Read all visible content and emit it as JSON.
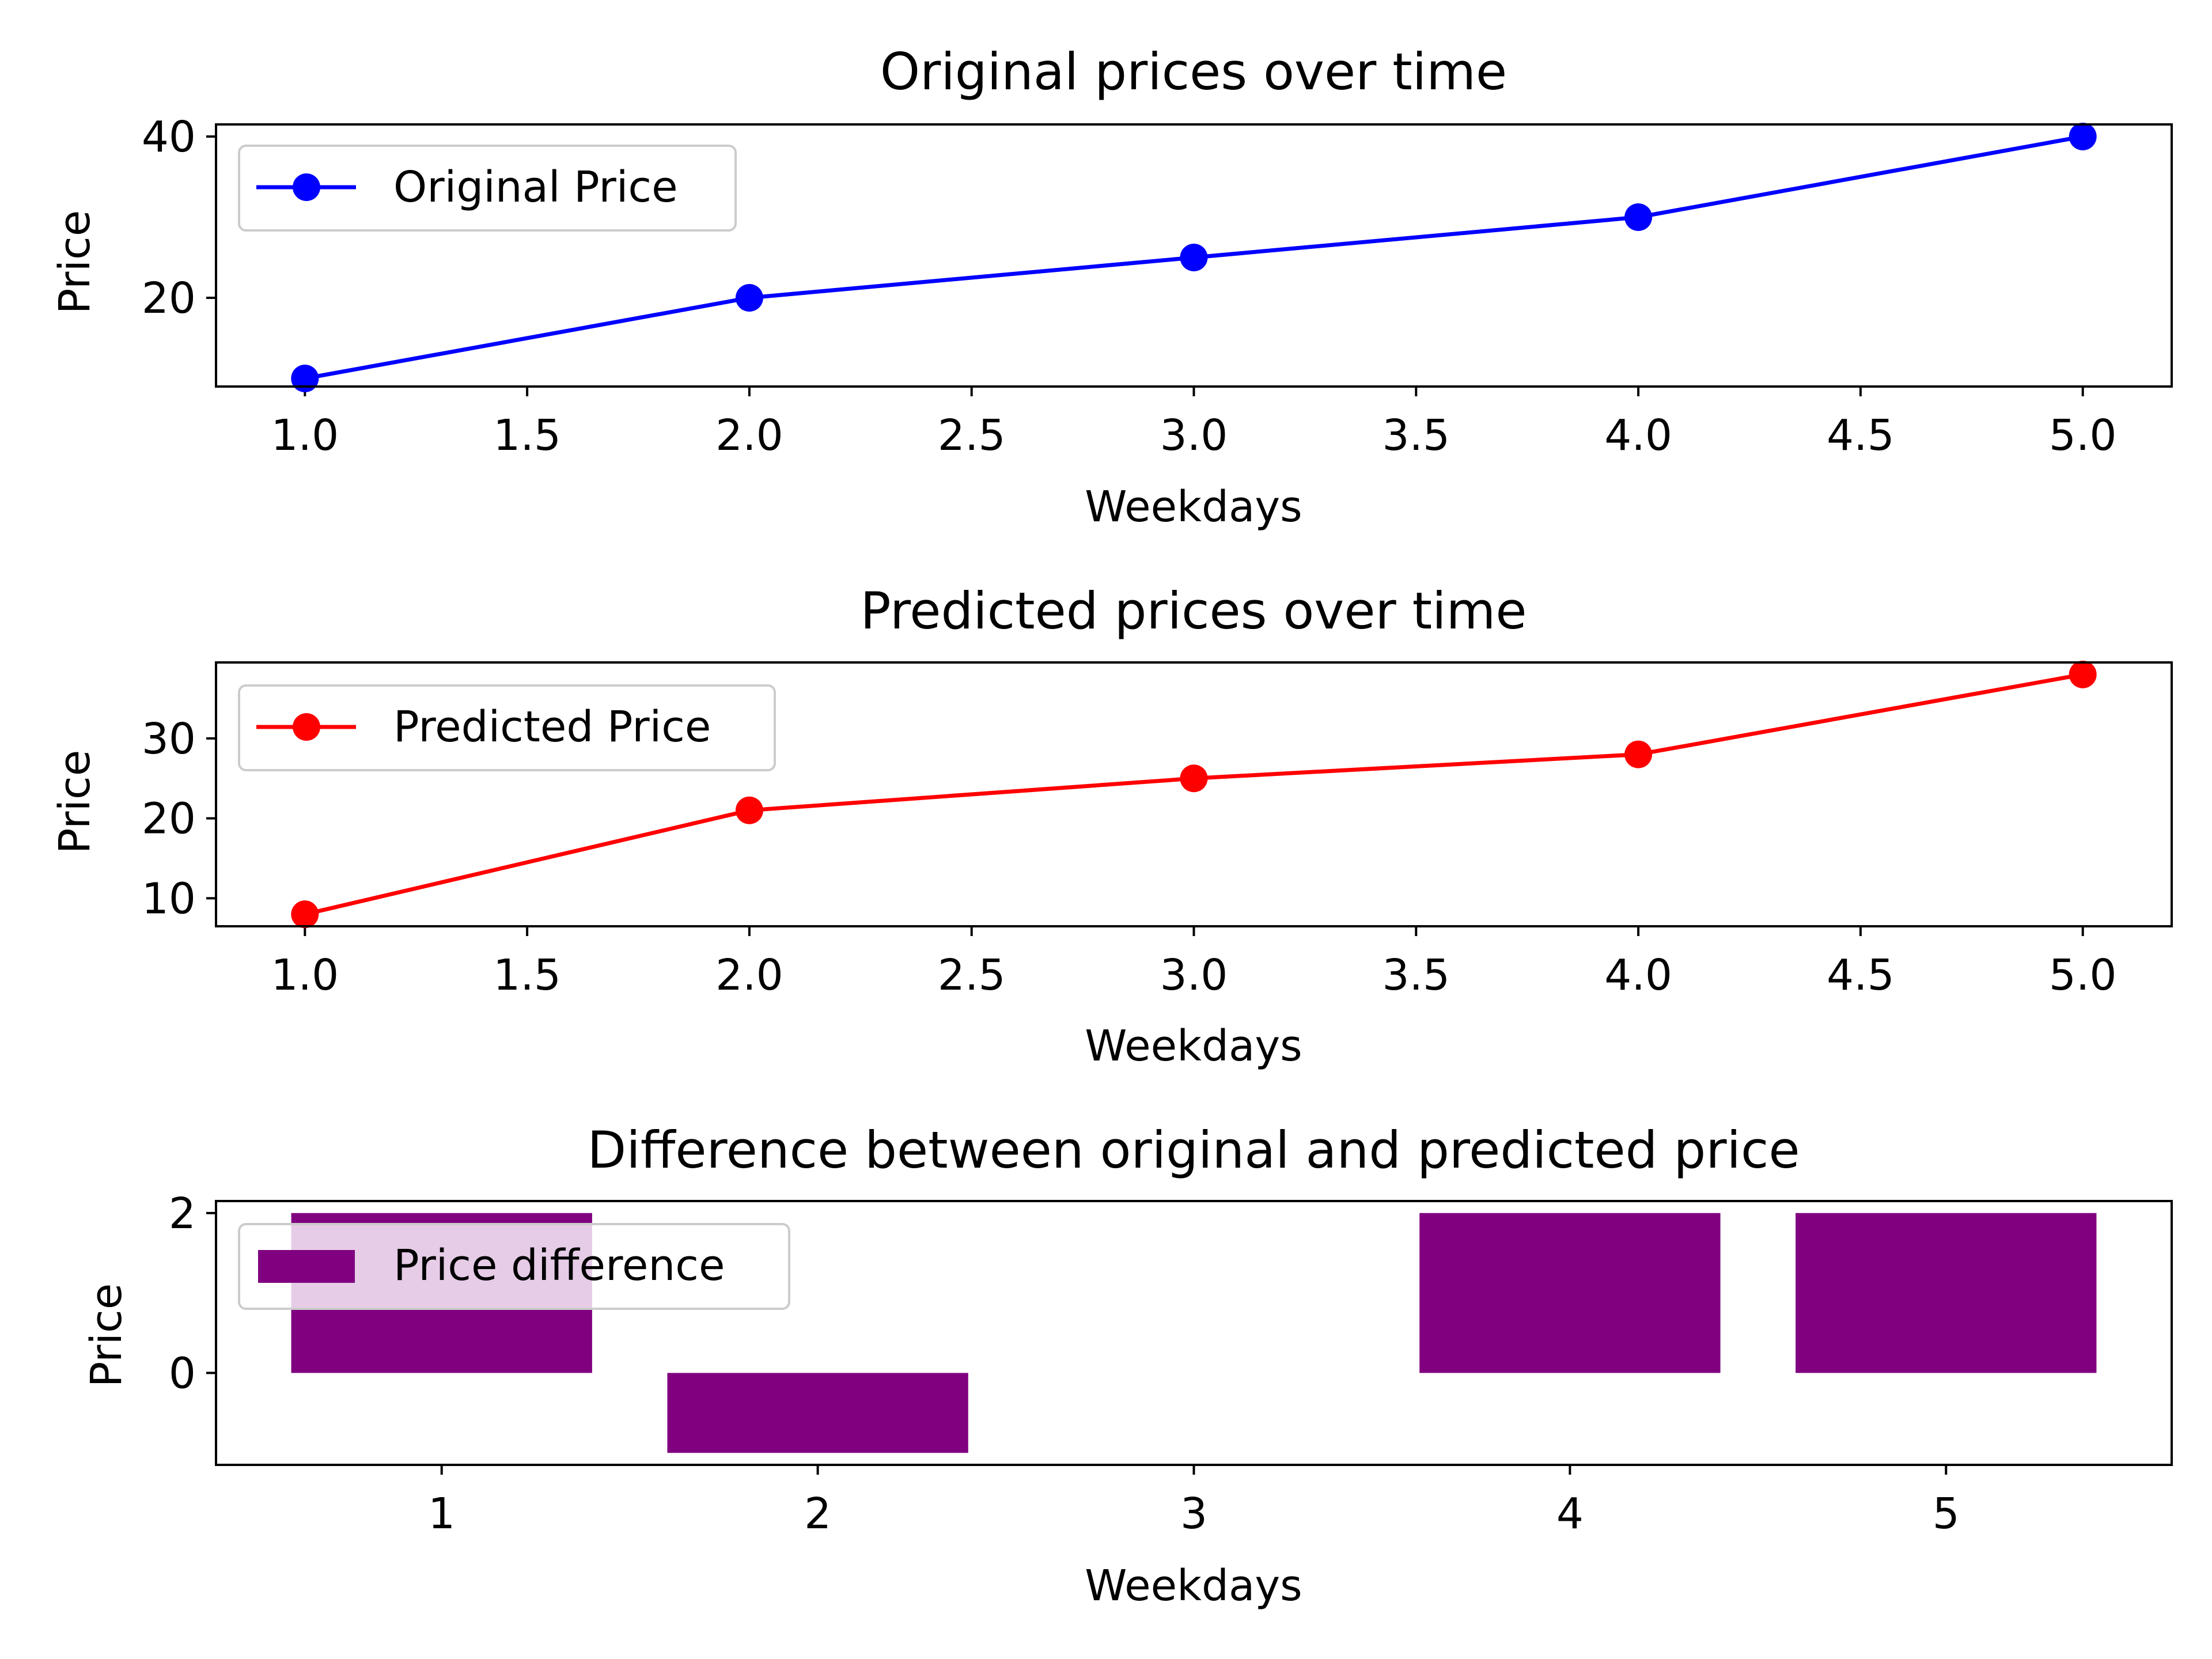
{
  "chart_data": [
    {
      "type": "line",
      "title": "Original prices over time",
      "xlabel": "Weekdays",
      "ylabel": "Price",
      "x": [
        1,
        2,
        3,
        4,
        5
      ],
      "xlim": [
        0.8,
        5.2
      ],
      "ylim": [
        9,
        41.5
      ],
      "xticks": [
        "1.0",
        "1.5",
        "2.0",
        "2.5",
        "3.0",
        "3.5",
        "4.0",
        "4.5",
        "5.0"
      ],
      "yticks": [
        "20",
        "40"
      ],
      "grid": false,
      "legend_position": "upper-left",
      "series": [
        {
          "name": "Original Price",
          "values": [
            10,
            20,
            25,
            30,
            40
          ],
          "color": "#0000ff",
          "marker": "circle"
        }
      ]
    },
    {
      "type": "line",
      "title": "Predicted prices over time",
      "xlabel": "Weekdays",
      "ylabel": "Price",
      "x": [
        1,
        2,
        3,
        4,
        5
      ],
      "xlim": [
        0.8,
        5.2
      ],
      "ylim": [
        6.5,
        39.5
      ],
      "xticks": [
        "1.0",
        "1.5",
        "2.0",
        "2.5",
        "3.0",
        "3.5",
        "4.0",
        "4.5",
        "5.0"
      ],
      "yticks": [
        "10",
        "20",
        "30"
      ],
      "grid": false,
      "legend_position": "upper-left",
      "series": [
        {
          "name": "Predicted Price",
          "values": [
            8,
            21,
            25,
            28,
            38
          ],
          "color": "#ff0000",
          "marker": "circle"
        }
      ]
    },
    {
      "type": "bar",
      "title": "Difference between original and predicted price",
      "xlabel": "Weekdays",
      "ylabel": "Price",
      "categories": [
        "1",
        "2",
        "3",
        "4",
        "5"
      ],
      "x": [
        1,
        2,
        3,
        4,
        5
      ],
      "xlim": [
        0.4,
        5.6
      ],
      "ylim": [
        -1.15,
        2.15
      ],
      "yticks": [
        "0",
        "2"
      ],
      "grid": false,
      "legend_position": "upper-left",
      "series": [
        {
          "name": "Price difference",
          "values": [
            2,
            -1,
            0,
            2,
            2
          ],
          "color": "#800080"
        }
      ]
    }
  ]
}
